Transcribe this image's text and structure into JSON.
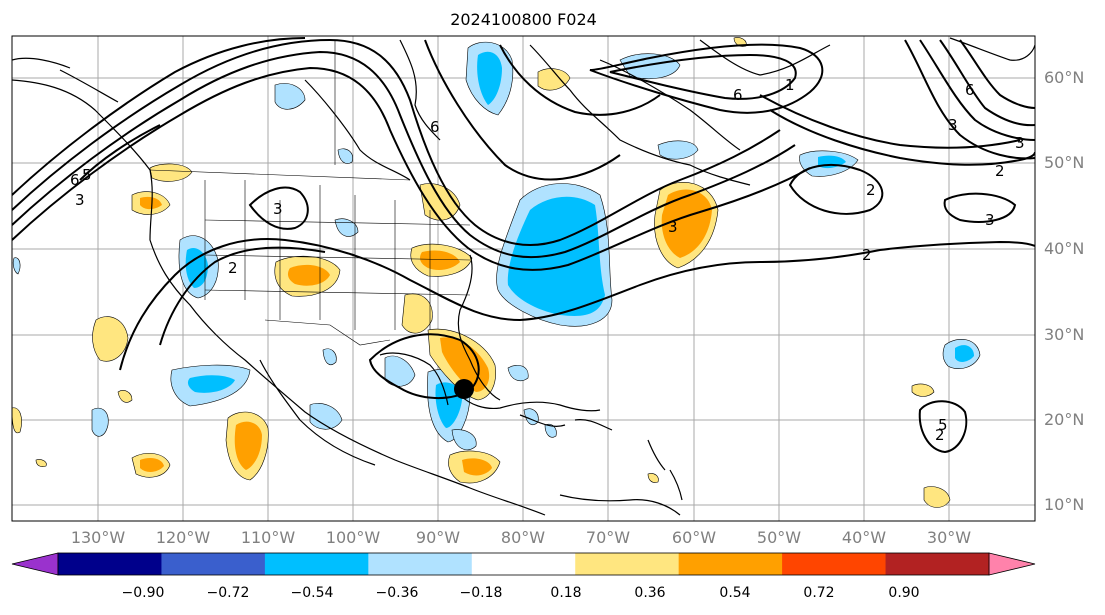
{
  "title": "2024100800 F024",
  "latitude_labels": [
    "60°N",
    "50°N",
    "40°N",
    "30°N",
    "20°N",
    "10°N"
  ],
  "longitude_labels": [
    "130°W",
    "120°W",
    "110°W",
    "100°W",
    "90°W",
    "80°W",
    "70°W",
    "60°W",
    "50°W",
    "40°W",
    "30°W"
  ],
  "contour_labels": [
    "6",
    "3",
    "6",
    "1",
    "6",
    "3",
    "6",
    "3",
    "5",
    "3",
    "2",
    "2",
    "3",
    "2",
    "2",
    "3",
    "5",
    "2"
  ],
  "colorbar": {
    "ticks": [
      "−0.90",
      "−0.72",
      "−0.54",
      "−0.36",
      "−0.18",
      "0.18",
      "0.36",
      "0.54",
      "0.72",
      "0.90"
    ],
    "colors": [
      "#9a32cd",
      "#00008b",
      "#3a5fcd",
      "#00bfff",
      "#b0e2ff",
      "#ffffff",
      "#ffe680",
      "#ffa000",
      "#ff4500",
      "#b22222",
      "#ff82ab"
    ]
  },
  "marker": "storm-center-dot"
}
